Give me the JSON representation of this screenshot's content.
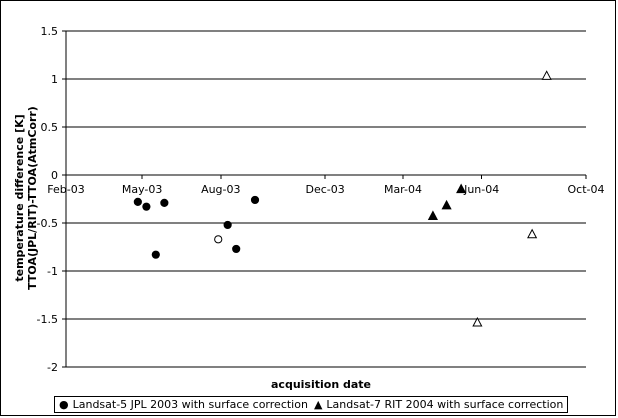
{
  "chart_data": {
    "type": "scatter",
    "xlabel": "acquisition date",
    "ylabel_line1": "temperature difference [K]",
    "ylabel_line2": "TTOA(JPL/RIT)-TTOA(AtmCorr)",
    "ylim": [
      -2,
      1.5
    ],
    "xlim": [
      "2003-02-01",
      "2004-10-01"
    ],
    "y_ticks": [
      "1.5",
      "1",
      "0.5",
      "0",
      "-0.5",
      "-1",
      "-1.5",
      "-2"
    ],
    "x_ticks": [
      {
        "date": "2003-02-01",
        "label": "Feb-03"
      },
      {
        "date": "2003-05-01",
        "label": "May-03"
      },
      {
        "date": "2003-08-01",
        "label": "Aug-03"
      },
      {
        "date": "2003-12-01",
        "label": "Dec-03"
      },
      {
        "date": "2004-03-01",
        "label": "Mar-04"
      },
      {
        "date": "2004-06-01",
        "label": "Jun-04"
      },
      {
        "date": "2004-10-01",
        "label": "Oct-04"
      }
    ],
    "grid": {
      "horizontal": true,
      "vertical": false
    },
    "legend_position": "bottom",
    "series": [
      {
        "name": "Landsat-5 JPL 2003 with surface correction",
        "marker": "circle-filled",
        "color": "#000000",
        "points": [
          {
            "x": "2003-04-26",
            "y": -0.28
          },
          {
            "x": "2003-05-06",
            "y": -0.33
          },
          {
            "x": "2003-05-17",
            "y": -0.83
          },
          {
            "x": "2003-05-27",
            "y": -0.29
          },
          {
            "x": "2003-08-09",
            "y": -0.52
          },
          {
            "x": "2003-08-19",
            "y": -0.77
          },
          {
            "x": "2003-09-10",
            "y": -0.26
          }
        ]
      },
      {
        "name": "",
        "marker": "circle-open",
        "color": "#000000",
        "points": [
          {
            "x": "2003-07-29",
            "y": -0.67
          }
        ]
      },
      {
        "name": "Landsat-7 RIT 2004 with surface correction",
        "marker": "triangle-filled",
        "color": "#000000",
        "points": [
          {
            "x": "2004-04-05",
            "y": -0.43
          },
          {
            "x": "2004-04-21",
            "y": -0.32
          },
          {
            "x": "2004-05-08",
            "y": -0.15
          }
        ]
      },
      {
        "name": "",
        "marker": "triangle-open",
        "color": "#000000",
        "points": [
          {
            "x": "2004-05-27",
            "y": -1.54
          },
          {
            "x": "2004-07-30",
            "y": -0.62
          },
          {
            "x": "2004-08-16",
            "y": 1.03
          }
        ]
      }
    ]
  }
}
